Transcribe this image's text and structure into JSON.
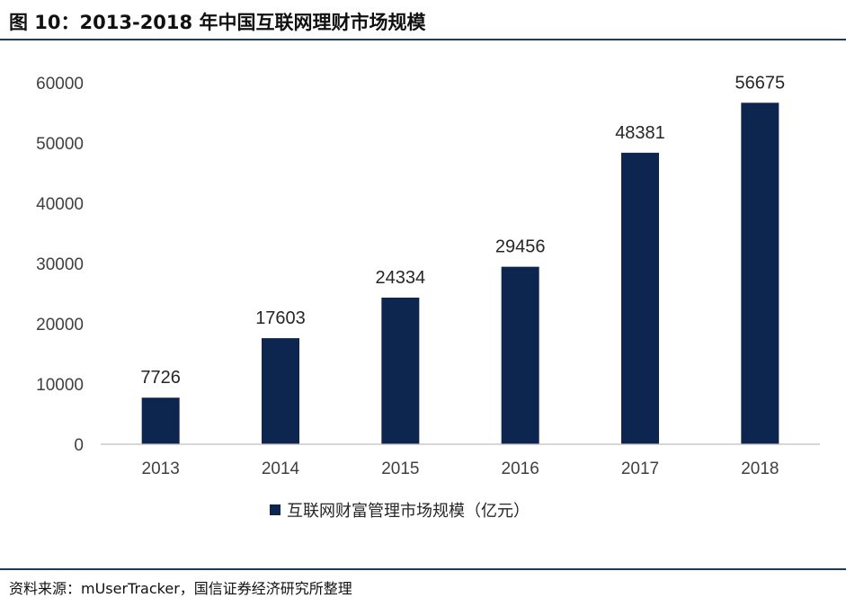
{
  "header": {
    "title": "图 10：2013-2018 年中国互联网理财市场规模"
  },
  "footer": {
    "source": "资料来源：mUserTracker，国信证券经济研究所整理"
  },
  "colors": {
    "bar": "#0d2650",
    "axis": "#bfbfbf",
    "rule": "#1f3864"
  },
  "chart_data": {
    "type": "bar",
    "categories": [
      "2013",
      "2014",
      "2015",
      "2016",
      "2017",
      "2018"
    ],
    "series": [
      {
        "name": "互联网财富管理市场规模（亿元）",
        "values": [
          7726,
          17603,
          24334,
          29456,
          48381,
          56675
        ]
      }
    ],
    "ylim": [
      0,
      60000
    ],
    "yticks": [
      0,
      10000,
      20000,
      30000,
      40000,
      50000,
      60000
    ],
    "grid": false,
    "legend": "bottom",
    "data_labels": true
  }
}
